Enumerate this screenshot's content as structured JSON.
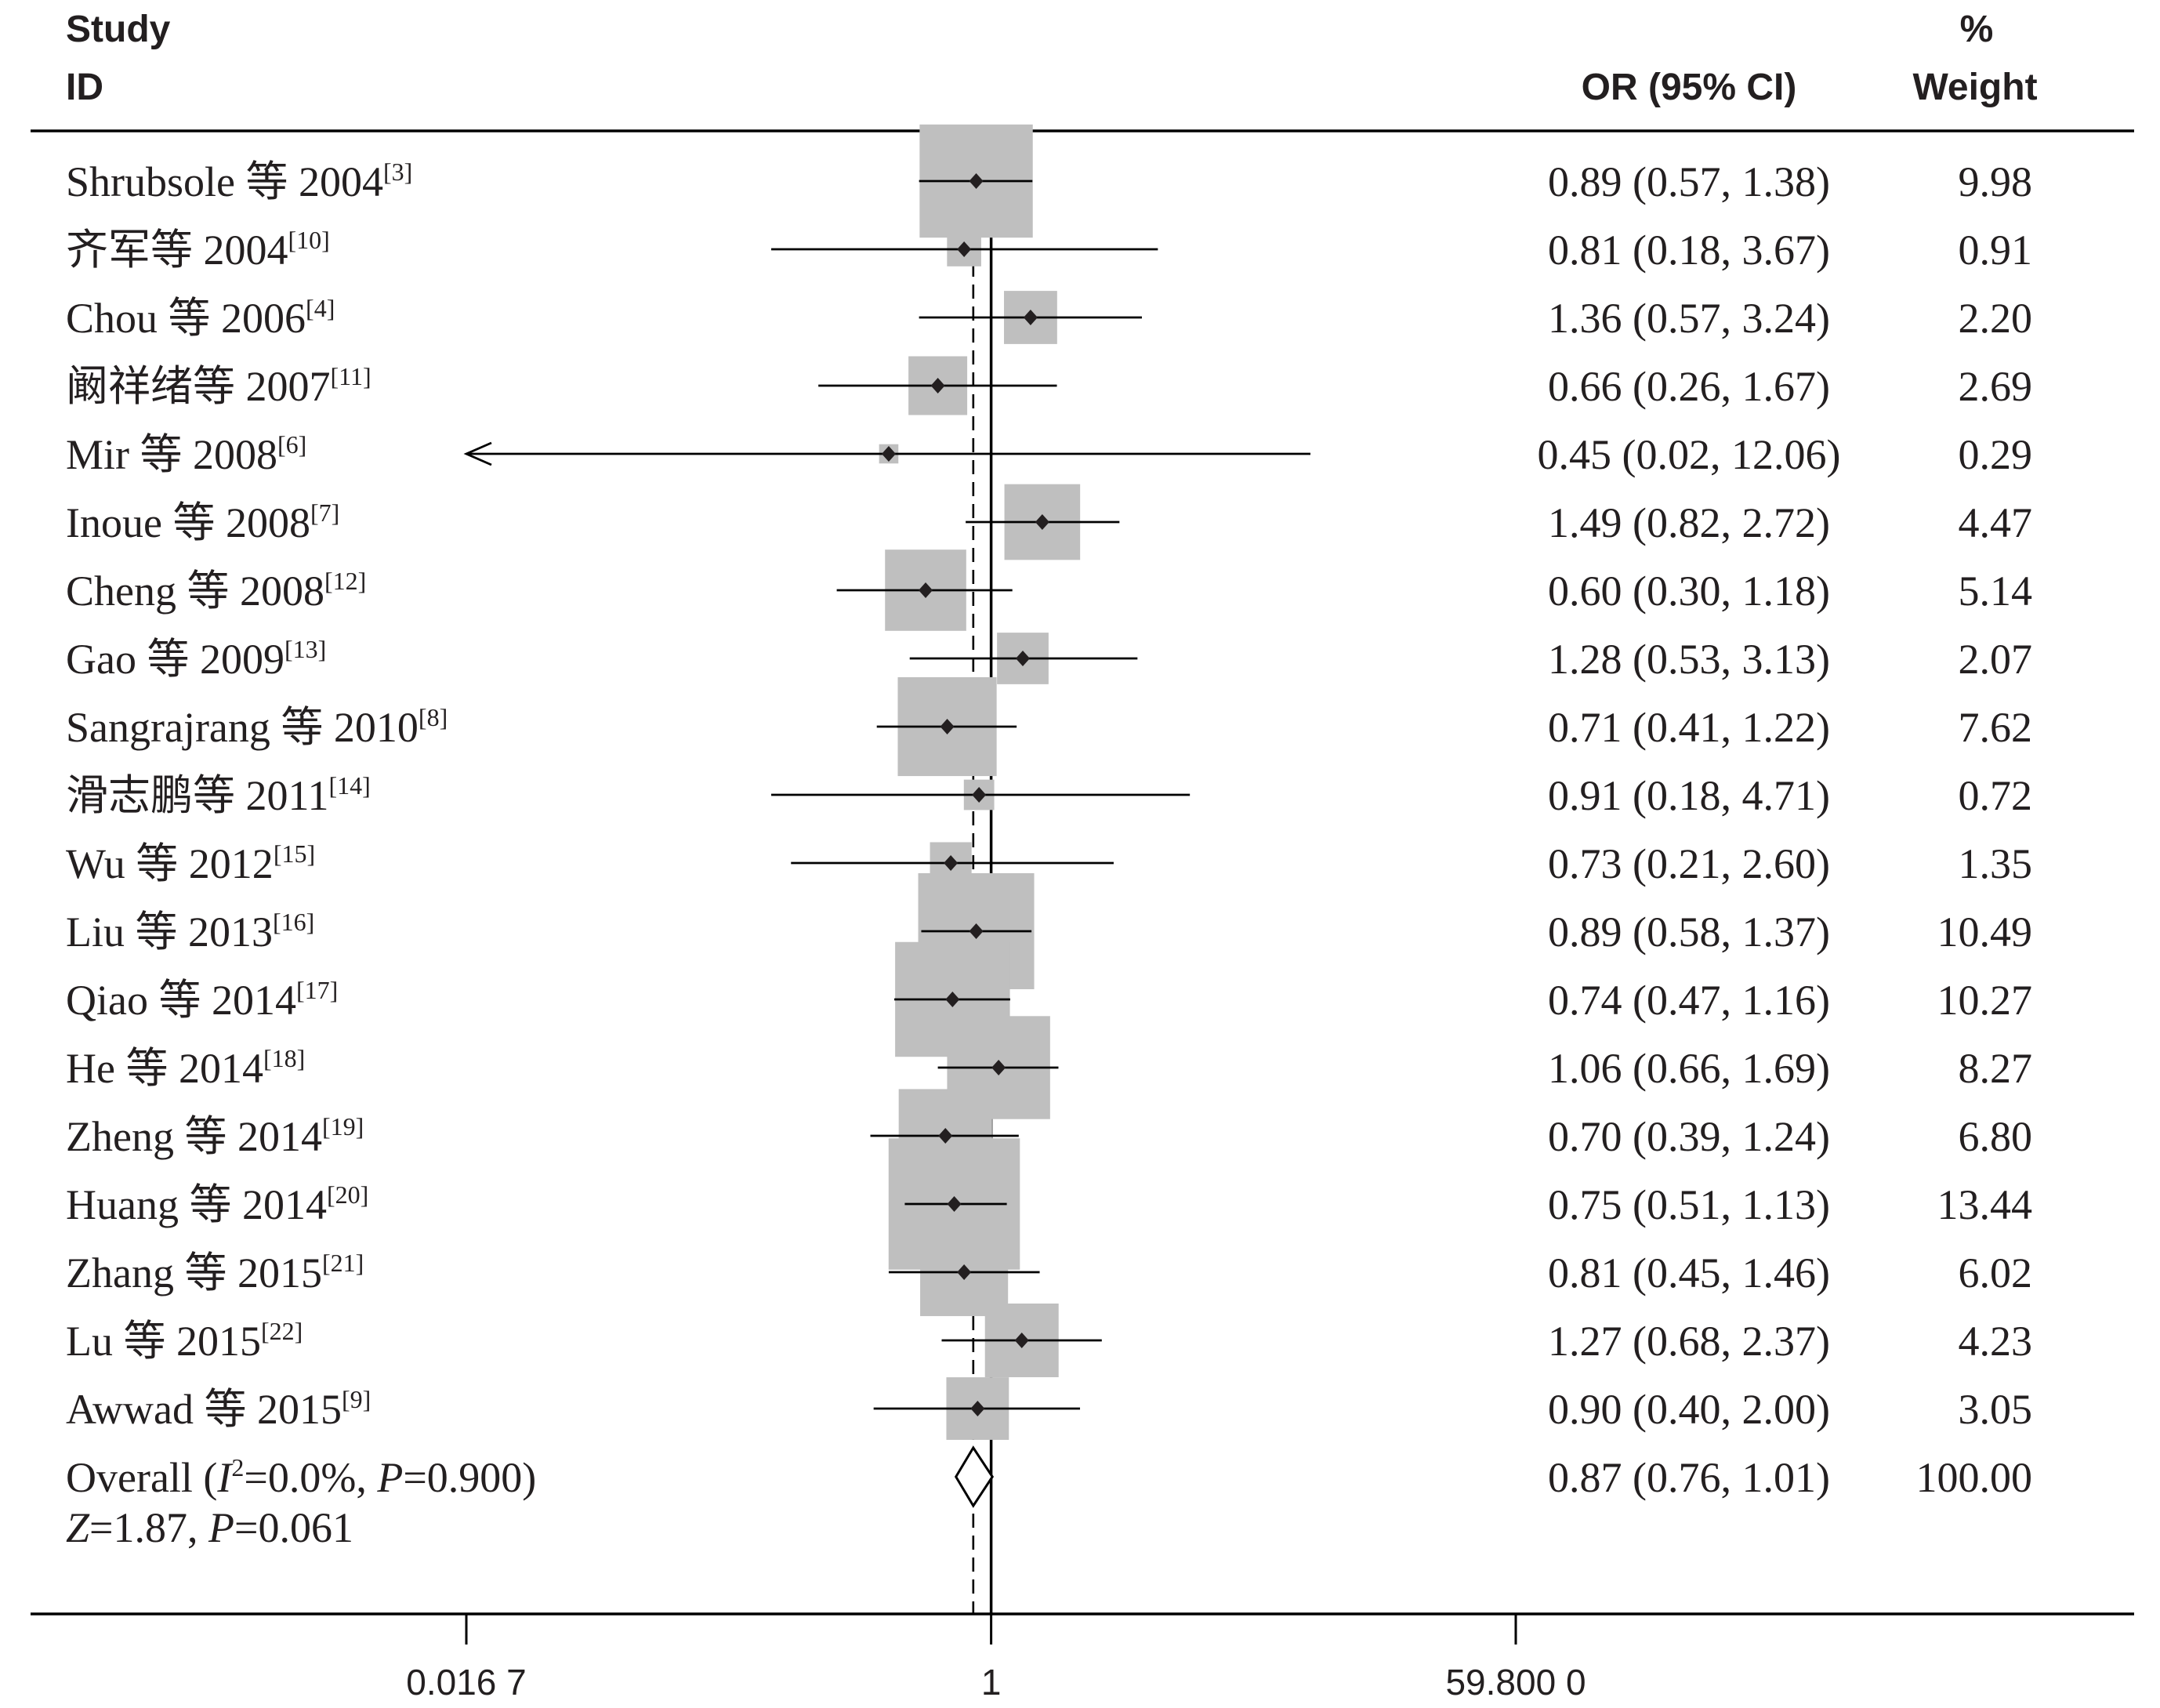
{
  "chart_data": {
    "type": "scatter",
    "x_scale": "log",
    "xlim": [
      0.0167,
      59.8
    ],
    "x_ticks": [
      {
        "value": 0.0167,
        "label": "0.016 7"
      },
      {
        "value": 1,
        "label": "1"
      },
      {
        "value": 59.8,
        "label": "59.800 0"
      }
    ],
    "reference_line": 1,
    "grid": false,
    "colors": {
      "box": "#bfbfbf",
      "line": "#000000",
      "marker": "#231f20"
    },
    "columns": {
      "study": "Study",
      "id": "ID",
      "or": "OR (95% CI)",
      "pct": "%",
      "weight": "Weight"
    },
    "studies": [
      {
        "label": "Shrubsole 等 2004",
        "ref": "[3]",
        "or": 0.89,
        "lower": 0.57,
        "upper": 1.38,
        "or_text": "0.89 (0.57, 1.38)",
        "weight": 9.98,
        "weight_text": "9.98"
      },
      {
        "label": "齐军等 2004",
        "ref": "[10]",
        "or": 0.81,
        "lower": 0.18,
        "upper": 3.67,
        "or_text": "0.81 (0.18, 3.67)",
        "weight": 0.91,
        "weight_text": "0.91"
      },
      {
        "label": "Chou 等 2006",
        "ref": "[4]",
        "or": 1.36,
        "lower": 0.57,
        "upper": 3.24,
        "or_text": "1.36 (0.57, 3.24)",
        "weight": 2.2,
        "weight_text": "2.20"
      },
      {
        "label": "阚祥绪等 2007",
        "ref": "[11]",
        "or": 0.66,
        "lower": 0.26,
        "upper": 1.67,
        "or_text": "0.66 (0.26, 1.67)",
        "weight": 2.69,
        "weight_text": "2.69"
      },
      {
        "label": "Mir 等 2008",
        "ref": "[6]",
        "or": 0.45,
        "lower": 0.02,
        "upper": 12.06,
        "or_text": "0.45 (0.02, 12.06)",
        "weight": 0.29,
        "weight_text": "0.29",
        "ci_arrow": "left"
      },
      {
        "label": "Inoue 等 2008",
        "ref": "[7]",
        "or": 1.49,
        "lower": 0.82,
        "upper": 2.72,
        "or_text": "1.49 (0.82, 2.72)",
        "weight": 4.47,
        "weight_text": "4.47"
      },
      {
        "label": "Cheng 等 2008",
        "ref": "[12]",
        "or": 0.6,
        "lower": 0.3,
        "upper": 1.18,
        "or_text": "0.60 (0.30, 1.18)",
        "weight": 5.14,
        "weight_text": "5.14"
      },
      {
        "label": "Gao 等 2009",
        "ref": "[13]",
        "or": 1.28,
        "lower": 0.53,
        "upper": 3.13,
        "or_text": "1.28 (0.53, 3.13)",
        "weight": 2.07,
        "weight_text": "2.07"
      },
      {
        "label": "Sangrajrang 等 2010",
        "ref": "[8]",
        "or": 0.71,
        "lower": 0.41,
        "upper": 1.22,
        "or_text": "0.71 (0.41, 1.22)",
        "weight": 7.62,
        "weight_text": "7.62"
      },
      {
        "label": "滑志鹏等 2011",
        "ref": "[14]",
        "or": 0.91,
        "lower": 0.18,
        "upper": 4.71,
        "or_text": "0.91 (0.18, 4.71)",
        "weight": 0.72,
        "weight_text": "0.72"
      },
      {
        "label": "Wu 等 2012",
        "ref": "[15]",
        "or": 0.73,
        "lower": 0.21,
        "upper": 2.6,
        "or_text": "0.73 (0.21, 2.60)",
        "weight": 1.35,
        "weight_text": "1.35"
      },
      {
        "label": "Liu 等 2013",
        "ref": "[16]",
        "or": 0.89,
        "lower": 0.58,
        "upper": 1.37,
        "or_text": "0.89 (0.58, 1.37)",
        "weight": 10.49,
        "weight_text": "10.49"
      },
      {
        "label": "Qiao 等 2014",
        "ref": "[17]",
        "or": 0.74,
        "lower": 0.47,
        "upper": 1.16,
        "or_text": "0.74 (0.47, 1.16)",
        "weight": 10.27,
        "weight_text": "10.27"
      },
      {
        "label": "He 等 2014",
        "ref": "[18]",
        "or": 1.06,
        "lower": 0.66,
        "upper": 1.69,
        "or_text": "1.06 (0.66, 1.69)",
        "weight": 8.27,
        "weight_text": "8.27"
      },
      {
        "label": "Zheng 等 2014",
        "ref": "[19]",
        "or": 0.7,
        "lower": 0.39,
        "upper": 1.24,
        "or_text": "0.70 (0.39, 1.24)",
        "weight": 6.8,
        "weight_text": "6.80"
      },
      {
        "label": "Huang 等 2014",
        "ref": "[20]",
        "or": 0.75,
        "lower": 0.51,
        "upper": 1.13,
        "or_text": "0.75 (0.51, 1.13)",
        "weight": 13.44,
        "weight_text": "13.44"
      },
      {
        "label": "Zhang 等 2015",
        "ref": "[21]",
        "or": 0.81,
        "lower": 0.45,
        "upper": 1.46,
        "or_text": "0.81 (0.45, 1.46)",
        "weight": 6.02,
        "weight_text": "6.02"
      },
      {
        "label": "Lu 等 2015",
        "ref": "[22]",
        "or": 1.27,
        "lower": 0.68,
        "upper": 2.37,
        "or_text": "1.27 (0.68, 2.37)",
        "weight": 4.23,
        "weight_text": "4.23"
      },
      {
        "label": "Awwad 等 2015",
        "ref": "[9]",
        "or": 0.9,
        "lower": 0.4,
        "upper": 2.0,
        "or_text": "0.90 (0.40, 2.00)",
        "weight": 3.05,
        "weight_text": "3.05"
      }
    ],
    "overall": {
      "label_parts": [
        {
          "text": "Overall ("
        },
        {
          "text": "I",
          "italic": true
        },
        {
          "text": "2",
          "sup": true
        },
        {
          "text": "=0.0%, "
        },
        {
          "text": "P",
          "italic": true
        },
        {
          "text": "=0.900)"
        }
      ],
      "stats_parts": [
        {
          "text": "Z",
          "italic": true
        },
        {
          "text": "=1.87, "
        },
        {
          "text": "P",
          "italic": true
        },
        {
          "text": "=0.061"
        }
      ],
      "or": 0.87,
      "lower": 0.76,
      "upper": 1.01,
      "or_text": "0.87 (0.76, 1.01)",
      "weight_text": "100.00"
    }
  }
}
